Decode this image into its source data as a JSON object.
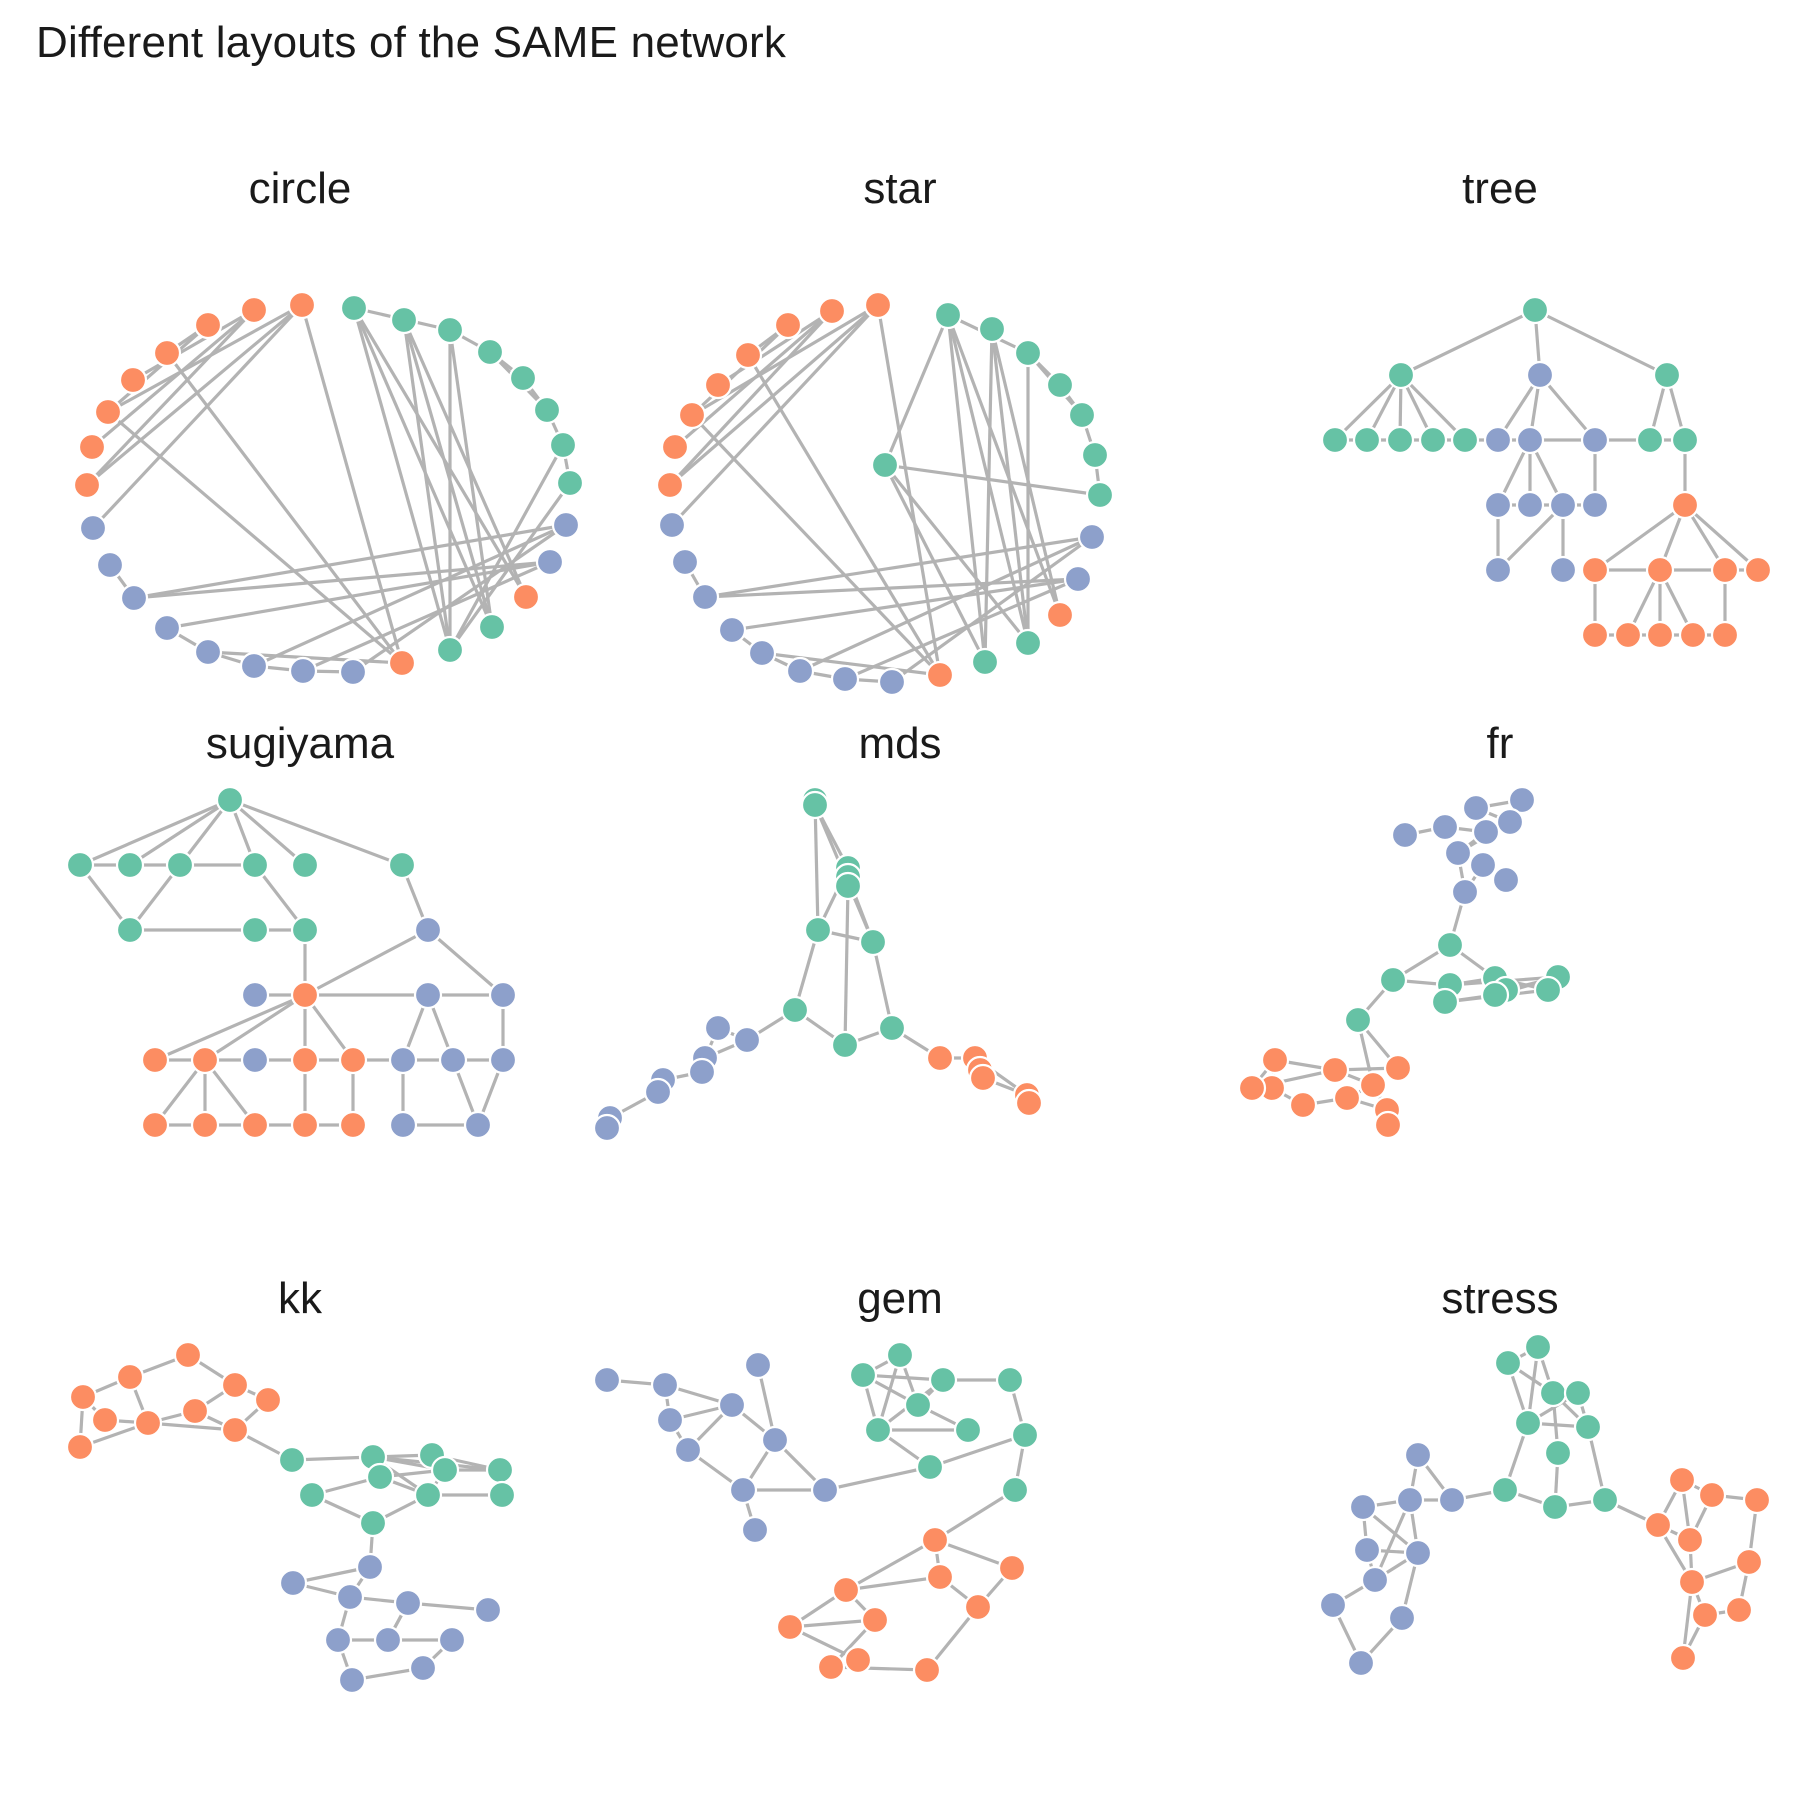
{
  "title": "Different layouts of the SAME network",
  "colors": {
    "edge": "#b3b3b3",
    "group_green": "#66c2a5",
    "group_orange": "#fc8d62",
    "group_blue": "#8da0cb"
  },
  "panels": [
    {
      "title": "circle"
    },
    {
      "title": "star"
    },
    {
      "title": "tree"
    },
    {
      "title": "sugiyama"
    },
    {
      "title": "mds"
    },
    {
      "title": "fr"
    },
    {
      "title": "kk"
    },
    {
      "title": "gem"
    },
    {
      "title": "stress"
    }
  ]
}
